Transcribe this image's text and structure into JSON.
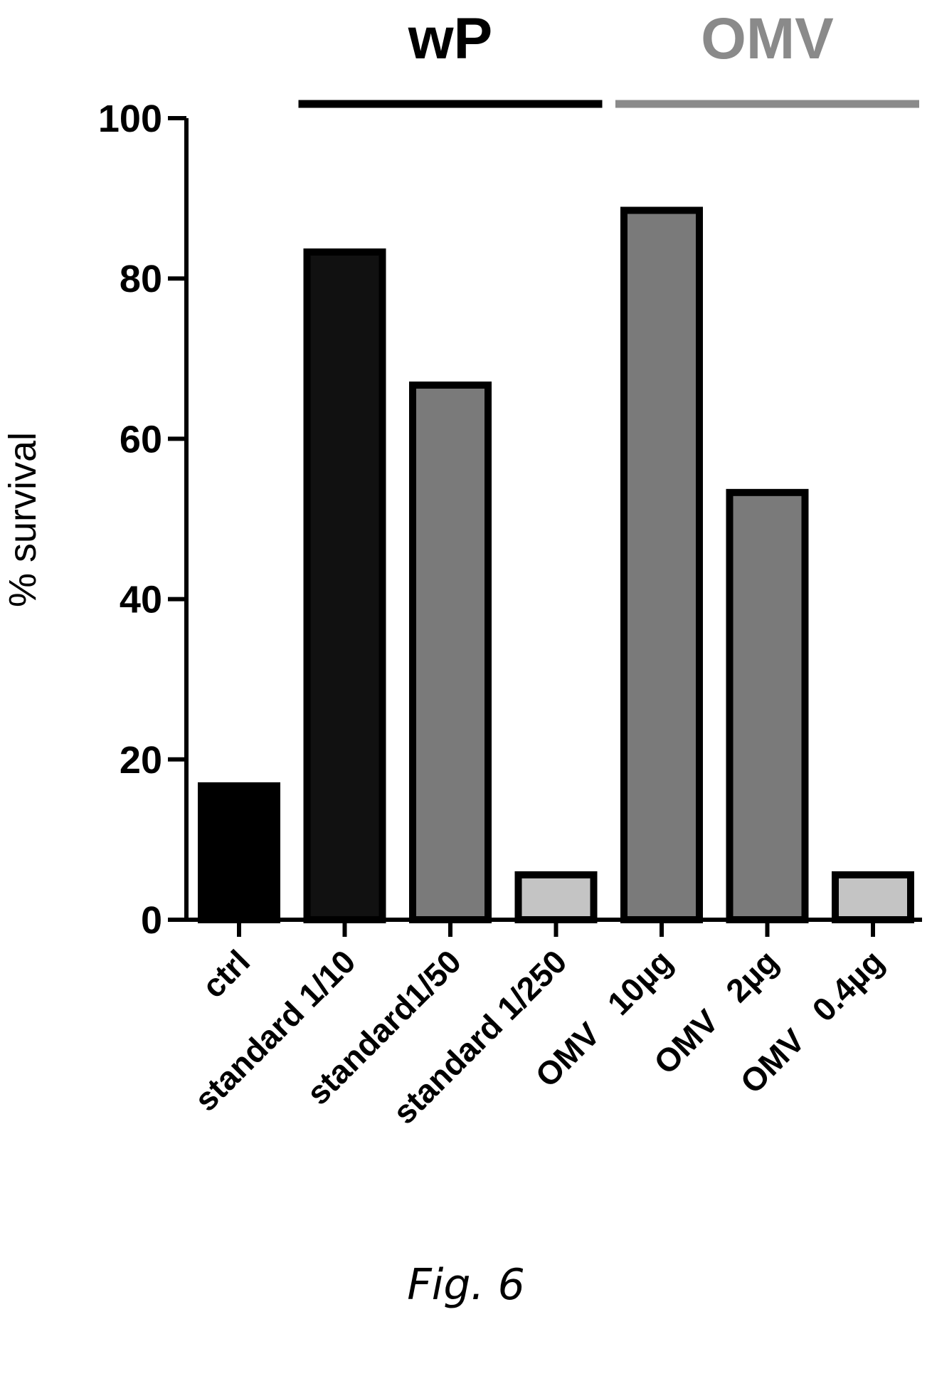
{
  "figure_caption": "Fig. 6",
  "chart_data": {
    "type": "bar",
    "ylabel": "% survival",
    "xlabel": "",
    "ylim": [
      0,
      100
    ],
    "yticks": [
      0,
      20,
      40,
      60,
      80,
      100
    ],
    "grid": false,
    "categories": [
      "ctrl",
      "standard 1/10",
      "standard1/50",
      "standard 1/250",
      "OMV   10µg",
      "OMV   2µg",
      "OMV   0.4µg"
    ],
    "values": [
      16.7,
      83.3,
      66.7,
      5.6,
      88.5,
      53.3,
      5.6
    ],
    "bar_colors": [
      "#000000",
      "#111111",
      "#7a7a7a",
      "#c4c4c4",
      "#7a7a7a",
      "#7a7a7a",
      "#c4c4c4"
    ],
    "group_labels": [
      {
        "text": "wP",
        "from": 1,
        "to": 3,
        "color": "#000000"
      },
      {
        "text": "OMV",
        "from": 4,
        "to": 6,
        "color": "#8a8a8a"
      }
    ]
  }
}
